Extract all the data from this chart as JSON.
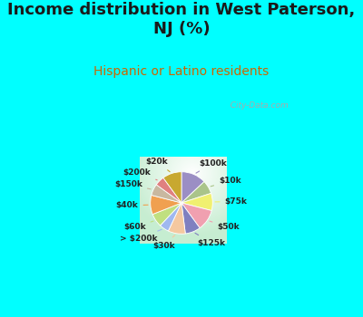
{
  "title": "Income distribution in West Paterson,\nNJ (%)",
  "subtitle": "Hispanic or Latino residents",
  "title_color": "#1a1a1a",
  "subtitle_color": "#cc6600",
  "background_top": "#00ffff",
  "watermark": "City-Data.com",
  "labels": [
    "$100k",
    "$10k",
    "$75k",
    "$50k",
    "$125k",
    "$30k",
    "> $200k",
    "$60k",
    "$40k",
    "$150k",
    "$200k",
    "$20k"
  ],
  "values": [
    13,
    7,
    9,
    11,
    8,
    9,
    5,
    7,
    10,
    6,
    5,
    10
  ],
  "colors": [
    "#9b8ec4",
    "#aac48a",
    "#f0f070",
    "#f0a0b0",
    "#8080c0",
    "#f5c8a0",
    "#a0b8f0",
    "#c0e080",
    "#f0a050",
    "#c8b8a0",
    "#e08080",
    "#c8a830"
  ],
  "startangle": 90,
  "title_fontsize": 13,
  "subtitle_fontsize": 10
}
